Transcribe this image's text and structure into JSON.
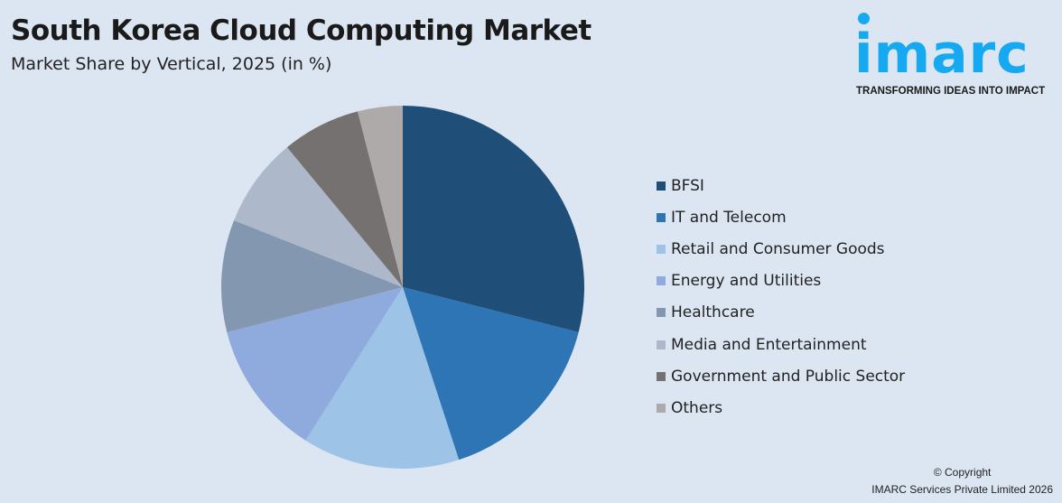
{
  "header": {
    "title": "South Korea Cloud Computing Market",
    "subtitle": "Market Share by Vertical, 2025 (in %)"
  },
  "logo": {
    "text": "imarc",
    "tagline": "TRANSFORMING IDEAS INTO IMPACT",
    "color": "#14a9f0"
  },
  "chart_data": {
    "type": "pie",
    "title": "South Korea Cloud Computing Market",
    "subtitle": "Market Share by Vertical, 2025 (in %)",
    "legend_position": "right",
    "start": "top, clockwise",
    "categories": [
      "BFSI",
      "IT and Telecom",
      "Retail and Consumer Goods",
      "Energy and Utilities",
      "Healthcare",
      "Media and Entertainment",
      "Government and Public Sector",
      "Others"
    ],
    "values": [
      29,
      16,
      14,
      12,
      10,
      8,
      7,
      4
    ],
    "colors": [
      "#1f4e79",
      "#2e75b6",
      "#9dc3e6",
      "#8faadc",
      "#8497b0",
      "#adb9ca",
      "#767171",
      "#aeaaaa"
    ]
  },
  "footer": {
    "copyright": "© Copyright",
    "company": "IMARC Services Private Limited 2026"
  }
}
